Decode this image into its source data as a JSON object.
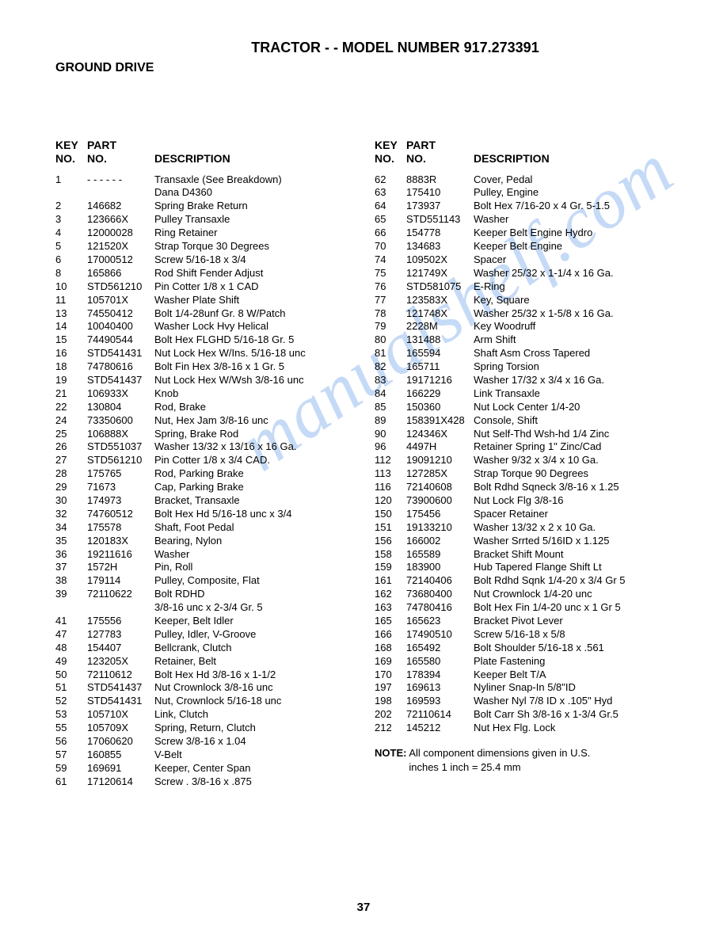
{
  "title": "TRACTOR - - MODEL NUMBER  917.273391",
  "subtitle": "GROUND DRIVE",
  "watermark": "manualshelf.com",
  "page_number": "37",
  "header": {
    "key_line1": "KEY",
    "key_line2": "NO.",
    "part_line1": "PART",
    "part_line2": "NO.",
    "desc_line1": "",
    "desc_line2": "DESCRIPTION"
  },
  "left_rows": [
    {
      "key": "1",
      "part": "- - - - - -",
      "desc": "Transaxle (See Breakdown)"
    },
    {
      "key": "",
      "part": "",
      "desc": "Dana D4360"
    },
    {
      "key": "2",
      "part": "146682",
      "desc": "Spring Brake Return"
    },
    {
      "key": "3",
      "part": "123666X",
      "desc": "Pulley Transaxle"
    },
    {
      "key": "4",
      "part": "12000028",
      "desc": "Ring Retainer"
    },
    {
      "key": "5",
      "part": "121520X",
      "desc": "Strap Torque 30 Degrees"
    },
    {
      "key": "6",
      "part": "17000512",
      "desc": "Screw 5/16-18 x 3/4"
    },
    {
      "key": "8",
      "part": "165866",
      "desc": "Rod Shift Fender Adjust"
    },
    {
      "key": "10",
      "part": "STD561210",
      "desc": "Pin Cotter  1/8 x 1 CAD"
    },
    {
      "key": "11",
      "part": "105701X",
      "desc": "Washer Plate Shift"
    },
    {
      "key": "13",
      "part": "74550412",
      "desc": "Bolt 1/4-28unf Gr. 8 W/Patch"
    },
    {
      "key": "14",
      "part": "10040400",
      "desc": "Washer Lock Hvy Helical"
    },
    {
      "key": "15",
      "part": "74490544",
      "desc": "Bolt Hex FLGHD 5/16-18 Gr. 5"
    },
    {
      "key": "16",
      "part": "STD541431",
      "desc": "Nut Lock Hex W/Ins. 5/16-18 unc"
    },
    {
      "key": "18",
      "part": "74780616",
      "desc": "Bolt Fin Hex 3/8-16 x 1 Gr. 5"
    },
    {
      "key": "19",
      "part": "STD541437",
      "desc": "Nut Lock Hex W/Wsh  3/8-16 unc"
    },
    {
      "key": "21",
      "part": "106933X",
      "desc": "Knob"
    },
    {
      "key": "22",
      "part": "130804",
      "desc": "Rod, Brake"
    },
    {
      "key": "24",
      "part": "73350600",
      "desc": "Nut, Hex Jam  3/8-16 unc"
    },
    {
      "key": "25",
      "part": "106888X",
      "desc": "Spring, Brake Rod"
    },
    {
      "key": "26",
      "part": "STD551037",
      "desc": "Washer 13/32 x 13/16 x 16 Ga."
    },
    {
      "key": "27",
      "part": "STD561210",
      "desc": "Pin Cotter  1/8 x 3/4 CAD."
    },
    {
      "key": "28",
      "part": "175765",
      "desc": "Rod, Parking Brake"
    },
    {
      "key": "29",
      "part": "71673",
      "desc": "Cap, Parking Brake"
    },
    {
      "key": "30",
      "part": "174973",
      "desc": "Bracket, Transaxle"
    },
    {
      "key": "32",
      "part": "74760512",
      "desc": "Bolt Hex Hd  5/16-18 unc x 3/4"
    },
    {
      "key": "34",
      "part": "175578",
      "desc": "Shaft, Foot Pedal"
    },
    {
      "key": "35",
      "part": "120183X",
      "desc": "Bearing, Nylon"
    },
    {
      "key": "36",
      "part": "19211616",
      "desc": "Washer"
    },
    {
      "key": "37",
      "part": "1572H",
      "desc": "Pin, Roll"
    },
    {
      "key": "38",
      "part": "179114",
      "desc": "Pulley, Composite, Flat"
    },
    {
      "key": "39",
      "part": "72110622",
      "desc": "Bolt RDHD"
    },
    {
      "key": "",
      "part": "",
      "desc": "3/8-16 unc x 2-3/4 Gr. 5"
    },
    {
      "key": "41",
      "part": "175556",
      "desc": "Keeper, Belt Idler"
    },
    {
      "key": "47",
      "part": "127783",
      "desc": "Pulley, Idler, V-Groove"
    },
    {
      "key": "48",
      "part": "154407",
      "desc": "Bellcrank, Clutch"
    },
    {
      "key": "49",
      "part": "123205X",
      "desc": "Retainer, Belt"
    },
    {
      "key": "50",
      "part": "72110612",
      "desc": "Bolt Hex Hd 3/8-16 x 1-1/2"
    },
    {
      "key": "51",
      "part": "STD541437",
      "desc": "Nut Crownlock  3/8-16 unc"
    },
    {
      "key": "52",
      "part": "STD541431",
      "desc": "Nut, Crownlock  5/16-18 unc"
    },
    {
      "key": "53",
      "part": "105710X",
      "desc": "Link, Clutch"
    },
    {
      "key": "55",
      "part": "105709X",
      "desc": "Spring, Return, Clutch"
    },
    {
      "key": "56",
      "part": "17060620",
      "desc": "Screw 3/8-16 x 1.04"
    },
    {
      "key": "57",
      "part": "160855",
      "desc": "V-Belt"
    },
    {
      "key": "59",
      "part": "169691",
      "desc": "Keeper, Center Span"
    },
    {
      "key": "61",
      "part": "17120614",
      "desc": "Screw .  3/8-16 x .875"
    }
  ],
  "right_rows": [
    {
      "key": "62",
      "part": "8883R",
      "desc": "Cover, Pedal"
    },
    {
      "key": "63",
      "part": "175410",
      "desc": "Pulley, Engine"
    },
    {
      "key": "64",
      "part": "173937",
      "desc": "Bolt Hex  7/16-20 x 4 Gr. 5-1.5"
    },
    {
      "key": "65",
      "part": "STD551143",
      "desc": "Washer"
    },
    {
      "key": "66",
      "part": "154778",
      "desc": "Keeper Belt Engine Hydro"
    },
    {
      "key": "70",
      "part": "134683",
      "desc": "Keeper Belt Engine"
    },
    {
      "key": "74",
      "part": "109502X",
      "desc": "Spacer"
    },
    {
      "key": "75",
      "part": "121749X",
      "desc": "Washer  25/32 x 1-1/4 x 16 Ga."
    },
    {
      "key": "76",
      "part": "STD581075",
      "desc": "E-Ring"
    },
    {
      "key": "77",
      "part": "123583X",
      "desc": "Key, Square"
    },
    {
      "key": "78",
      "part": "121748X",
      "desc": "Washer  25/32 x 1-5/8 x 16 Ga."
    },
    {
      "key": "79",
      "part": "2228M",
      "desc": "Key Woodruff"
    },
    {
      "key": "80",
      "part": "131488",
      "desc": "Arm Shift"
    },
    {
      "key": "81",
      "part": "165594",
      "desc": "Shaft Asm Cross Tapered"
    },
    {
      "key": "82",
      "part": "165711",
      "desc": "Spring Torsion"
    },
    {
      "key": "83",
      "part": "19171216",
      "desc": "Washer  17/32 x 3/4 x 16 Ga."
    },
    {
      "key": "84",
      "part": "166229",
      "desc": "Link Transaxle"
    },
    {
      "key": "85",
      "part": "150360",
      "desc": "Nut Lock Center 1/4-20"
    },
    {
      "key": "89",
      "part": "158391X428",
      "desc": "Console, Shift"
    },
    {
      "key": "90",
      "part": "124346X",
      "desc": "Nut Self-Thd Wsh-hd  1/4 Zinc"
    },
    {
      "key": "96",
      "part": "4497H",
      "desc": "Retainer Spring 1\" Zinc/Cad"
    },
    {
      "key": "112",
      "part": "19091210",
      "desc": "Washer 9/32 x 3/4 x 10 Ga."
    },
    {
      "key": "113",
      "part": "127285X",
      "desc": "Strap Torque 90 Degrees"
    },
    {
      "key": "116",
      "part": "72140608",
      "desc": "Bolt Rdhd Sqneck  3/8-16 x 1.25"
    },
    {
      "key": "120",
      "part": "73900600",
      "desc": "Nut Lock Flg 3/8-16"
    },
    {
      "key": "150",
      "part": "175456",
      "desc": "Spacer Retainer"
    },
    {
      "key": "151",
      "part": "19133210",
      "desc": "Washer  13/32 x 2 x 10 Ga."
    },
    {
      "key": "156",
      "part": "166002",
      "desc": "Washer Srrted 5/16ID x 1.125"
    },
    {
      "key": "158",
      "part": "165589",
      "desc": "Bracket Shift Mount"
    },
    {
      "key": "159",
      "part": "183900",
      "desc": "Hub Tapered Flange Shift Lt"
    },
    {
      "key": "161",
      "part": "72140406",
      "desc": "Bolt Rdhd Sqnk 1/4-20 x 3/4 Gr 5"
    },
    {
      "key": "162",
      "part": "73680400",
      "desc": "Nut Crownlock 1/4-20 unc"
    },
    {
      "key": "163",
      "part": "74780416",
      "desc": "Bolt Hex Fin 1/4-20 unc x 1 Gr 5"
    },
    {
      "key": "165",
      "part": "165623",
      "desc": "Bracket Pivot Lever"
    },
    {
      "key": "166",
      "part": "17490510",
      "desc": "Screw 5/16-18 x 5/8"
    },
    {
      "key": "168",
      "part": "165492",
      "desc": "Bolt Shoulder 5/16-18 x .561"
    },
    {
      "key": "169",
      "part": "165580",
      "desc": "Plate Fastening"
    },
    {
      "key": "170",
      "part": "178394",
      "desc": "Keeper  Belt T/A"
    },
    {
      "key": "197",
      "part": "169613",
      "desc": "Nyliner  Snap-In 5/8\"ID"
    },
    {
      "key": "198",
      "part": "169593",
      "desc": "Washer Nyl 7/8 ID x .105\" Hyd"
    },
    {
      "key": "202",
      "part": "72110614",
      "desc": "Bolt Carr Sh 3/8-16 x 1-3/4 Gr.5"
    },
    {
      "key": "212",
      "part": "145212",
      "desc": "Nut Hex Flg. Lock"
    }
  ],
  "note_label": "NOTE:",
  "note_text1": "All component dimensions given in U.S.",
  "note_text2": "inches 1 inch = 25.4 mm"
}
